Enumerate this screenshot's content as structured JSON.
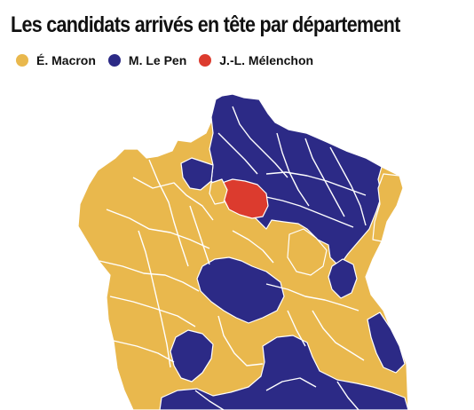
{
  "title": "Les candidats arrivés en tête par département",
  "legend": [
    {
      "label": "É. Macron",
      "color": "#E9B84D"
    },
    {
      "label": "M. Le Pen",
      "color": "#2C2A86"
    },
    {
      "label": "J.-L. Mélenchon",
      "color": "#DC3B2E"
    }
  ],
  "map_colors": {
    "macron": "#E9B84D",
    "le_pen": "#2C2A86",
    "melenchon": "#DC3B2E",
    "border": "#ffffff"
  }
}
